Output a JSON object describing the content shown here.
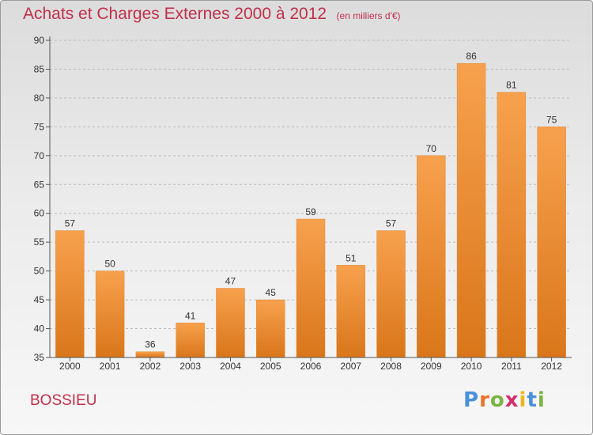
{
  "header": {
    "title": "Achats et Charges Externes 2000 à 2012",
    "subtitle": "(en milliers d'€)"
  },
  "footer": {
    "commune": "BOSSIEU",
    "brand": {
      "letters": [
        "P",
        "r",
        "o",
        "x",
        "i",
        "t",
        "i"
      ],
      "colors": [
        "#4a90d9",
        "#e8732a",
        "#7cb342",
        "#d32f6a",
        "#f2b51f",
        "#4a90d9",
        "#7cb342"
      ]
    }
  },
  "colors": {
    "bar_light": "#f7a14e",
    "bar_dark": "#d9761a",
    "title": "#c0304a",
    "grid": "#bbbbbb",
    "axis": "#555555"
  },
  "chart_data": {
    "type": "bar",
    "categories": [
      "2000",
      "2001",
      "2002",
      "2003",
      "2004",
      "2005",
      "2006",
      "2007",
      "2008",
      "2009",
      "2010",
      "2011",
      "2012"
    ],
    "values": [
      57,
      50,
      36,
      41,
      47,
      45,
      59,
      51,
      57,
      70,
      86,
      81,
      75
    ],
    "ylim": [
      35,
      90
    ],
    "yticks": [
      35,
      40,
      45,
      50,
      55,
      60,
      65,
      70,
      75,
      80,
      85,
      90
    ],
    "grid": true,
    "data_labels": true
  }
}
